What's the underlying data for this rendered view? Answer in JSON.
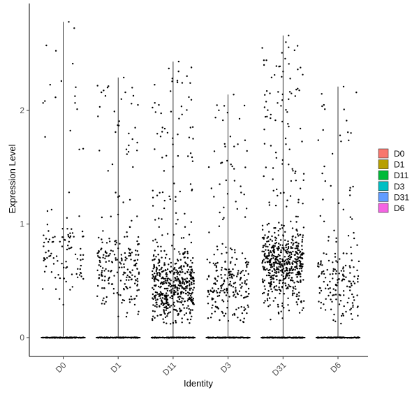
{
  "chart_data": {
    "type": "violin-jitter",
    "xlabel": "Identity",
    "ylabel": "Expression Level",
    "categories": [
      "D0",
      "D1",
      "D11",
      "D3",
      "D31",
      "D6"
    ],
    "yticks": [
      0,
      1,
      2
    ],
    "ylim": [
      -0.15,
      2.92
    ],
    "grid": false,
    "legend": {
      "position": "right",
      "entries": [
        {
          "label": "D0",
          "color": "#F8766D"
        },
        {
          "label": "D1",
          "color": "#B79F00"
        },
        {
          "label": "D11",
          "color": "#00BA38"
        },
        {
          "label": "D3",
          "color": "#00BFC4"
        },
        {
          "label": "D31",
          "color": "#619CFF"
        },
        {
          "label": "D6",
          "color": "#F564E3"
        }
      ]
    },
    "series": [
      {
        "name": "D0",
        "max": 2.78,
        "n_nonzero": 110,
        "points_summary": {
          "median_nonzero": 0.75
        }
      },
      {
        "name": "D1",
        "max": 2.29,
        "n_nonzero": 230,
        "points_summary": {
          "median_nonzero": 0.6
        }
      },
      {
        "name": "D11",
        "max": 2.43,
        "n_nonzero": 560,
        "points_summary": {
          "median_nonzero": 0.45
        }
      },
      {
        "name": "D3",
        "max": 2.14,
        "n_nonzero": 240,
        "points_summary": {
          "median_nonzero": 0.45
        }
      },
      {
        "name": "D31",
        "max": 2.66,
        "n_nonzero": 620,
        "points_summary": {
          "median_nonzero": 0.65
        }
      },
      {
        "name": "D6",
        "max": 2.21,
        "n_nonzero": 180,
        "points_summary": {
          "median_nonzero": 0.5
        }
      }
    ]
  }
}
